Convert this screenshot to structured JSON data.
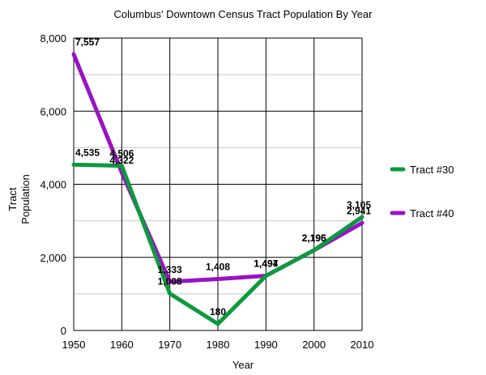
{
  "chart_data": {
    "type": "line",
    "title": "Columbus' Downtown Census Tract Population By Year",
    "xlabel": "Year",
    "ylabel": [
      "Tract",
      "Population"
    ],
    "x": [
      1950,
      1960,
      1970,
      1980,
      1990,
      2000,
      2010
    ],
    "xlim": [
      1950,
      2010
    ],
    "ylim": [
      0,
      8000
    ],
    "y_ticks": [
      0,
      2000,
      4000,
      6000,
      8000
    ],
    "y_tick_labels": [
      "0",
      "2,000",
      "4,000",
      "6,000",
      "8,000"
    ],
    "x_tick_labels": [
      "1950",
      "1960",
      "1970",
      "1980",
      "1990",
      "2000",
      "2010"
    ],
    "grid": true,
    "legend_position": "right",
    "series": [
      {
        "name": "Tract #30",
        "color": "#0b9a3e",
        "values": [
          4535,
          4506,
          1008,
          180,
          1494,
          2196,
          3105
        ],
        "labels": [
          "4,535",
          "4,506",
          "1,008",
          "180",
          "1,494",
          "2,196",
          "3,105"
        ]
      },
      {
        "name": "Tract #40",
        "color": "#9a12c4",
        "values": [
          7557,
          4322,
          1333,
          1408,
          1497,
          2195,
          2941
        ],
        "labels": [
          "7,557",
          "4,322",
          "1,333",
          "1,408",
          "1,497",
          "2,195",
          "2,941"
        ]
      }
    ]
  }
}
